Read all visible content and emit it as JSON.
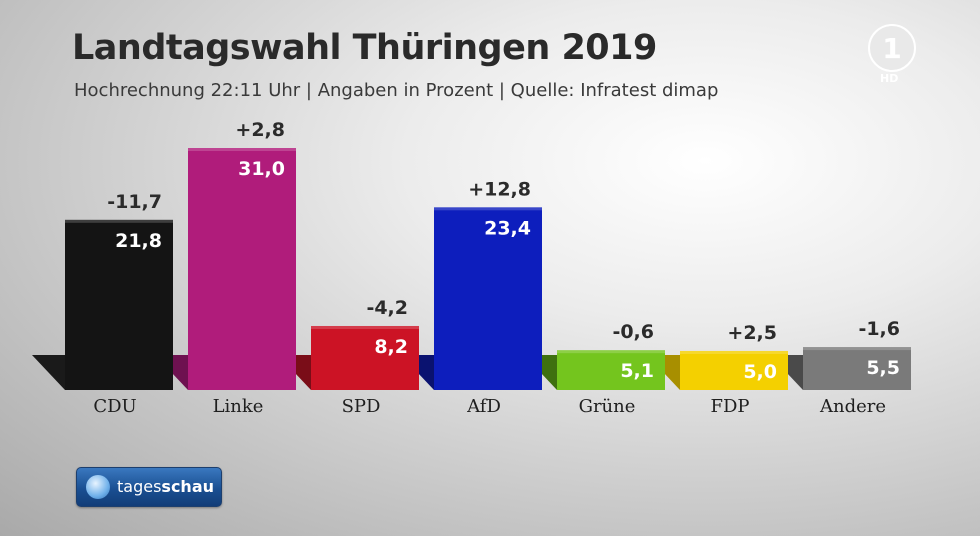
{
  "header": {
    "title": "Landtagswahl Thüringen 2019",
    "subtitle": "Hochrechnung 22:11 Uhr | Angaben in Prozent | Quelle: Infratest dimap"
  },
  "channel": {
    "logo_text": "1",
    "hd_label": "HD"
  },
  "brand": {
    "prefix": "tages",
    "suffix": "schau"
  },
  "chart_data": {
    "type": "bar",
    "title": "Landtagswahl Thüringen 2019",
    "categories": [
      "CDU",
      "Linke",
      "SPD",
      "AfD",
      "Grüne",
      "FDP",
      "Andere"
    ],
    "series": [
      {
        "values": [
          21.8,
          31.0,
          8.2,
          23.4,
          5.1,
          5.0,
          5.5
        ]
      }
    ],
    "value_labels": [
      "21,8",
      "31,0",
      "8,2",
      "23,4",
      "5,1",
      "5,0",
      "5,5"
    ],
    "change_labels": [
      "-11,7",
      "+2,8",
      "-4,2",
      "+12,8",
      "-0,6",
      "+2,5",
      "-1,6"
    ],
    "changes": [
      -11.7,
      2.8,
      -4.2,
      12.8,
      -0.6,
      2.5,
      -1.6
    ],
    "colors": [
      "#141414",
      "#b01c7b",
      "#cc1325",
      "#0d1ebd",
      "#74c51e",
      "#f4d000",
      "#7a7a7a"
    ],
    "side_colors": [
      "#1a1a1a",
      "#6e1150",
      "#7a0d18",
      "#0a1270",
      "#3e7010",
      "#a88f00",
      "#4a4a4a"
    ],
    "value_text_colors": [
      "#ffffff",
      "#ffffff",
      "#ffffff",
      "#ffffff",
      "#ffffff",
      "#ffffff",
      "#ffffff"
    ],
    "ylim": [
      0,
      31.0
    ],
    "xlabel": "",
    "ylabel": "",
    "grid": false,
    "legend": "none"
  }
}
